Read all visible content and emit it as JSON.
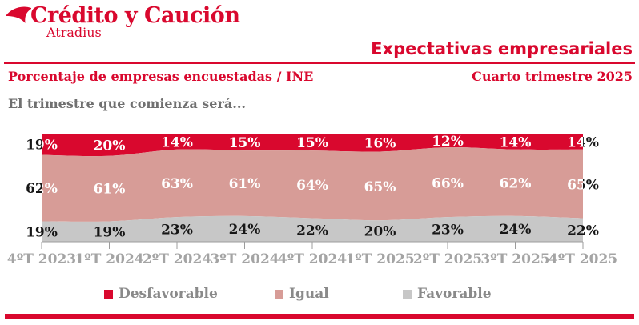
{
  "brand": {
    "logo_text": "Crédito y Caución",
    "logo_subtext": "Atradius",
    "accent_color": "#d9082e"
  },
  "header": {
    "title": "Expectativas empresariales",
    "subtitle_left": "Porcentaje de empresas encuestadas / INE",
    "subtitle_right": "Cuarto trimestre 2025"
  },
  "chart_intro": "El trimestre que comienza será...",
  "chart_data": {
    "type": "area",
    "stacked": true,
    "stack_order": "top-to-bottom",
    "title": "El trimestre que comienza será...",
    "categories": [
      "4ºT 2023",
      "1ºT 2024",
      "2ºT 2024",
      "3ºT 2024",
      "4ºT 2024",
      "1ºT 2025",
      "2ºT 2025",
      "3ºT 2025",
      "4ºT 2025"
    ],
    "series": [
      {
        "name": "Desfavorable",
        "color": "#d9082e",
        "label_color": "#ffffff",
        "values": [
          19,
          20,
          14,
          15,
          15,
          16,
          12,
          14,
          14
        ]
      },
      {
        "name": "Igual",
        "color": "#d79c97",
        "label_color": "#ffffff",
        "values": [
          62,
          61,
          63,
          61,
          64,
          65,
          66,
          62,
          65
        ]
      },
      {
        "name": "Favorable",
        "color": "#c7c7c7",
        "label_color": "#161616",
        "values": [
          19,
          19,
          23,
          24,
          22,
          20,
          23,
          24,
          22
        ]
      }
    ],
    "value_suffix": "%",
    "ylim": [
      0,
      100
    ],
    "grid": false,
    "legend_position": "bottom",
    "axis_color": "#9c9c9c",
    "tick_label_color": "#a4a4a4",
    "outside_label_color": "#161616"
  }
}
